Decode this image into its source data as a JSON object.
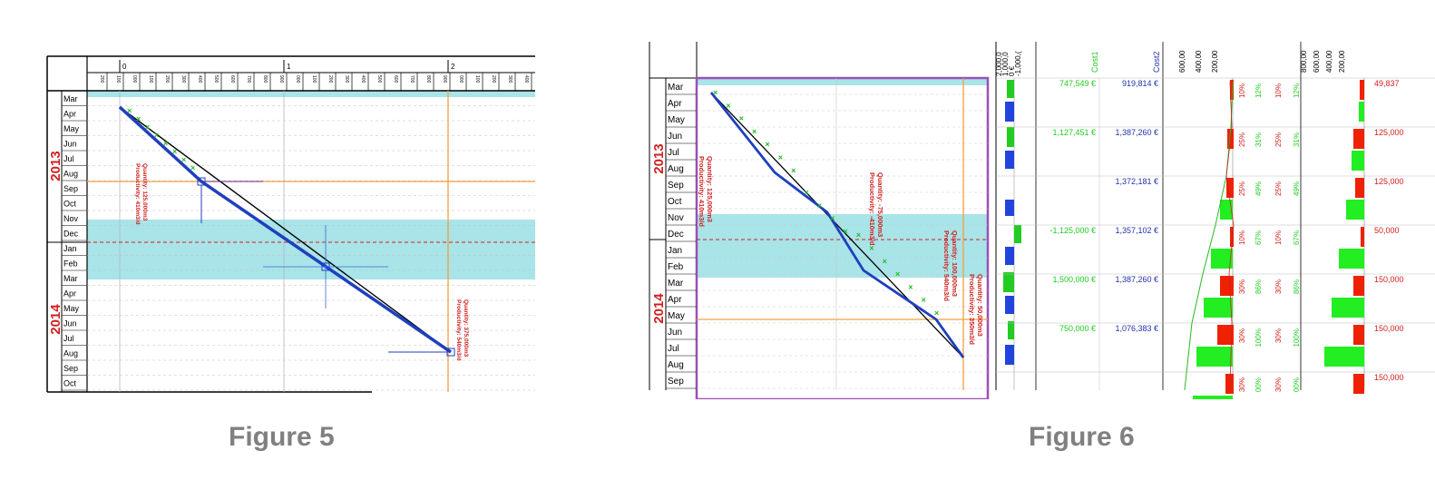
{
  "figure5": {
    "caption": "Figure 5",
    "distance_major_ticks": [
      "0",
      "1",
      "2"
    ],
    "distance_minor_ticks": [
      "200",
      "100",
      "000",
      "100",
      "200",
      "300",
      "400",
      "500",
      "600",
      "700",
      "800",
      "900",
      "000",
      "100",
      "200",
      "300",
      "400",
      "500",
      "600",
      "700",
      "800",
      "900",
      "000",
      "100",
      "200",
      "300",
      "400"
    ],
    "years": [
      "2013",
      "2014"
    ],
    "months": [
      "Mar",
      "Apr",
      "May",
      "Jun",
      "Jul",
      "Aug",
      "Sep",
      "Oct",
      "Nov",
      "Dec",
      "Jan",
      "Feb",
      "Mar",
      "Apr",
      "May",
      "Jun",
      "Jul",
      "Aug",
      "Sep",
      "Oct"
    ],
    "annotations": [
      {
        "line1": "Quantity: 125,000m3",
        "line2": "Productivity: 410m3/d"
      },
      {
        "line1": "Quantity: 375,000m3",
        "line2": "Productivity: 540m3/d"
      }
    ],
    "colors": {
      "year": "#d02020",
      "band": "#a8e4e8",
      "planned": "#1f3fbf",
      "target": "#000000",
      "guide": "#f0a040",
      "annotation": "#d02020"
    }
  },
  "figure6": {
    "caption": "Figure 6",
    "years": [
      "2013",
      "2014"
    ],
    "months": [
      "Mar",
      "Apr",
      "May",
      "Jun",
      "Jul",
      "Aug",
      "Sep",
      "Oct",
      "Nov",
      "Dec",
      "Jan",
      "Feb",
      "Mar",
      "Apr",
      "May",
      "Jun",
      "Jul",
      "Aug",
      "Sep"
    ],
    "annotations": [
      {
        "line1": "Quantity: 125,000m3",
        "line2": "Productivity: 410m3/d"
      },
      {
        "line1": "Quantity: -75,000m3",
        "line2": "Productivity: -410m3/d"
      },
      {
        "line1": "Quantity: 100,000m3",
        "line2": "Productivity: 540m3/d"
      },
      {
        "line1": "Quantity: 50,000m3",
        "line2": "Productivity: 350m3/d"
      }
    ],
    "balance_axis_labels": [
      "2,000,0",
      "1,000,0",
      "0 €",
      "-1,000,("
    ],
    "cost1_header": "Cost1",
    "cost2_header": "Cost2",
    "cost_rows": [
      {
        "cost1": "747,549 €",
        "cost2": "919,814 €"
      },
      {
        "cost1": "1,127,451 €",
        "cost2": "1,387,260 €"
      },
      {
        "cost1": "",
        "cost2": "1,372,181 €"
      },
      {
        "cost1": "-1,125,000 €",
        "cost2": "1,357,102 €"
      },
      {
        "cost1": "1,500,000 €",
        "cost2": "1,387,260 €"
      },
      {
        "cost1": "750,000 €",
        "cost2": "1,076,383 €"
      }
    ],
    "hist1_axis_labels": [
      "600,00",
      "400,00",
      "200,00"
    ],
    "hist2_axis_labels": [
      "800,00",
      "600,00",
      "400,00",
      "200,00"
    ],
    "pct_rows": [
      [
        "10%",
        "12%",
        "10%",
        "12%"
      ],
      [
        "25%",
        "31%",
        "25%",
        "31%"
      ],
      [
        "25%",
        "49%",
        "25%",
        "49%"
      ],
      [
        "10%",
        "67%",
        "10%",
        "67%"
      ],
      [
        "30%",
        "86%",
        "30%",
        "86%"
      ],
      [
        "30%",
        "100%",
        "30%",
        "100%"
      ],
      [
        "30%",
        "00%",
        "30%",
        "00%"
      ]
    ],
    "right_values": [
      "49,837",
      "125,000",
      "125,000",
      "50,000",
      "150,000",
      "150,000",
      "150,000"
    ],
    "colors": {
      "cost1": "#22cc22",
      "cost2": "#2233aa",
      "positive": "#22ee22",
      "negative": "#ee2200",
      "border": "#9a4fb5",
      "blue_bar": "#2244dd"
    }
  }
}
